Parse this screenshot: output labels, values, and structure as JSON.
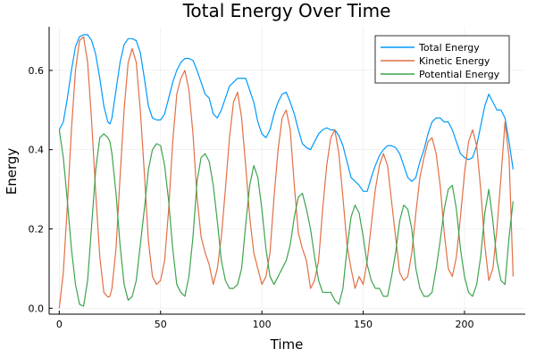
{
  "chart_data": {
    "type": "line",
    "title": "Total Energy Over Time",
    "xlabel": "Time",
    "ylabel": "Energy",
    "xlim": [
      -5,
      230
    ],
    "ylim": [
      -0.015,
      0.71
    ],
    "xticks": [
      0,
      50,
      100,
      150,
      200
    ],
    "xtick_labels": [
      "0",
      "50",
      "100",
      "150",
      "200"
    ],
    "yticks": [
      0.0,
      0.2,
      0.4,
      0.6
    ],
    "ytick_labels": [
      "0.0",
      "0.2",
      "0.4",
      "0.6"
    ],
    "grid": true,
    "legend_position": "top-right",
    "colors": {
      "total": "#009AFA",
      "kinetic": "#E26F46",
      "potential": "#3DA44E"
    },
    "series": [
      {
        "name": "Total Energy",
        "color_key": "total",
        "x": [
          0,
          2,
          4,
          6,
          8,
          10,
          12,
          14,
          16,
          18,
          20,
          22,
          24,
          25,
          26,
          28,
          30,
          32,
          34,
          36,
          38,
          40,
          42,
          44,
          46,
          48,
          50,
          52,
          54,
          56,
          58,
          60,
          62,
          64,
          66,
          68,
          70,
          72,
          74,
          76,
          78,
          80,
          82,
          84,
          86,
          88,
          90,
          92,
          94,
          96,
          98,
          100,
          102,
          104,
          106,
          108,
          110,
          112,
          114,
          116,
          118,
          120,
          122,
          124,
          126,
          128,
          130,
          132,
          134,
          136,
          138,
          140,
          142,
          144,
          146,
          148,
          150,
          152,
          154,
          156,
          158,
          160,
          162,
          164,
          166,
          168,
          170,
          172,
          174,
          176,
          178,
          180,
          182,
          184,
          186,
          188,
          190,
          192,
          194,
          196,
          198,
          200,
          202,
          204,
          206,
          208,
          210,
          212,
          214,
          216,
          218,
          220,
          222,
          224
        ],
        "values": [
          0.45,
          0.47,
          0.53,
          0.6,
          0.66,
          0.685,
          0.69,
          0.69,
          0.675,
          0.64,
          0.58,
          0.51,
          0.47,
          0.465,
          0.48,
          0.55,
          0.62,
          0.665,
          0.68,
          0.68,
          0.675,
          0.645,
          0.58,
          0.51,
          0.48,
          0.475,
          0.475,
          0.49,
          0.53,
          0.57,
          0.6,
          0.62,
          0.63,
          0.63,
          0.625,
          0.6,
          0.57,
          0.54,
          0.53,
          0.49,
          0.48,
          0.5,
          0.53,
          0.56,
          0.57,
          0.58,
          0.58,
          0.58,
          0.55,
          0.52,
          0.47,
          0.44,
          0.43,
          0.45,
          0.49,
          0.52,
          0.54,
          0.545,
          0.52,
          0.49,
          0.45,
          0.415,
          0.405,
          0.4,
          0.42,
          0.44,
          0.45,
          0.455,
          0.45,
          0.45,
          0.435,
          0.41,
          0.37,
          0.33,
          0.32,
          0.31,
          0.295,
          0.295,
          0.33,
          0.36,
          0.385,
          0.4,
          0.41,
          0.41,
          0.405,
          0.39,
          0.36,
          0.33,
          0.32,
          0.33,
          0.37,
          0.4,
          0.44,
          0.47,
          0.48,
          0.48,
          0.47,
          0.47,
          0.45,
          0.42,
          0.39,
          0.38,
          0.375,
          0.38,
          0.41,
          0.46,
          0.51,
          0.54,
          0.52,
          0.5,
          0.5,
          0.48,
          0.42,
          0.35
        ]
      },
      {
        "name": "Kinetic Energy",
        "color_key": "kinetic",
        "x": [
          0,
          2,
          4,
          6,
          8,
          10,
          12,
          14,
          16,
          18,
          20,
          22,
          24,
          25,
          26,
          28,
          30,
          32,
          34,
          36,
          38,
          40,
          42,
          44,
          46,
          48,
          50,
          52,
          54,
          56,
          58,
          60,
          62,
          64,
          66,
          68,
          70,
          72,
          74,
          76,
          78,
          80,
          82,
          84,
          86,
          88,
          90,
          92,
          94,
          96,
          98,
          100,
          102,
          104,
          106,
          108,
          110,
          112,
          114,
          116,
          118,
          120,
          122,
          124,
          126,
          128,
          130,
          132,
          134,
          136,
          138,
          140,
          142,
          144,
          146,
          148,
          150,
          152,
          154,
          156,
          158,
          160,
          162,
          164,
          166,
          168,
          170,
          172,
          174,
          176,
          178,
          180,
          182,
          184,
          186,
          188,
          190,
          192,
          194,
          196,
          198,
          200,
          202,
          204,
          206,
          208,
          210,
          212,
          214,
          216,
          218,
          220,
          222,
          224
        ],
        "values": [
          0.0,
          0.09,
          0.26,
          0.45,
          0.6,
          0.675,
          0.685,
          0.62,
          0.47,
          0.29,
          0.13,
          0.04,
          0.028,
          0.03,
          0.05,
          0.15,
          0.33,
          0.5,
          0.62,
          0.655,
          0.62,
          0.5,
          0.34,
          0.17,
          0.08,
          0.06,
          0.07,
          0.12,
          0.25,
          0.42,
          0.54,
          0.58,
          0.6,
          0.55,
          0.44,
          0.28,
          0.18,
          0.14,
          0.11,
          0.06,
          0.1,
          0.18,
          0.3,
          0.43,
          0.52,
          0.545,
          0.48,
          0.36,
          0.23,
          0.14,
          0.1,
          0.06,
          0.08,
          0.14,
          0.28,
          0.4,
          0.48,
          0.5,
          0.45,
          0.31,
          0.19,
          0.15,
          0.12,
          0.05,
          0.07,
          0.12,
          0.25,
          0.36,
          0.43,
          0.45,
          0.39,
          0.28,
          0.16,
          0.1,
          0.05,
          0.08,
          0.06,
          0.12,
          0.21,
          0.3,
          0.36,
          0.39,
          0.36,
          0.27,
          0.18,
          0.09,
          0.07,
          0.08,
          0.14,
          0.24,
          0.33,
          0.38,
          0.42,
          0.43,
          0.39,
          0.31,
          0.19,
          0.1,
          0.08,
          0.13,
          0.23,
          0.34,
          0.42,
          0.45,
          0.41,
          0.3,
          0.16,
          0.07,
          0.1,
          0.2,
          0.33,
          0.47,
          0.38,
          0.08
        ]
      },
      {
        "name": "Potential Energy",
        "color_key": "potential",
        "x": [
          0,
          2,
          4,
          6,
          8,
          10,
          12,
          14,
          16,
          18,
          20,
          22,
          24,
          25,
          26,
          28,
          30,
          32,
          34,
          36,
          38,
          40,
          42,
          44,
          46,
          48,
          50,
          52,
          54,
          56,
          58,
          60,
          62,
          64,
          66,
          68,
          70,
          72,
          74,
          76,
          78,
          80,
          82,
          84,
          86,
          88,
          90,
          92,
          94,
          96,
          98,
          100,
          102,
          104,
          106,
          108,
          110,
          112,
          114,
          116,
          118,
          120,
          122,
          124,
          126,
          128,
          130,
          132,
          134,
          136,
          138,
          140,
          142,
          144,
          146,
          148,
          150,
          152,
          154,
          156,
          158,
          160,
          162,
          164,
          166,
          168,
          170,
          172,
          174,
          176,
          178,
          180,
          182,
          184,
          186,
          188,
          190,
          192,
          194,
          196,
          198,
          200,
          202,
          204,
          206,
          208,
          210,
          212,
          214,
          216,
          218,
          220,
          222,
          224
        ],
        "values": [
          0.45,
          0.38,
          0.27,
          0.15,
          0.06,
          0.01,
          0.005,
          0.07,
          0.21,
          0.35,
          0.43,
          0.44,
          0.43,
          0.42,
          0.39,
          0.29,
          0.16,
          0.06,
          0.02,
          0.03,
          0.07,
          0.16,
          0.25,
          0.35,
          0.4,
          0.415,
          0.41,
          0.36,
          0.27,
          0.15,
          0.06,
          0.04,
          0.03,
          0.08,
          0.18,
          0.32,
          0.38,
          0.39,
          0.37,
          0.31,
          0.22,
          0.12,
          0.07,
          0.05,
          0.05,
          0.06,
          0.1,
          0.21,
          0.31,
          0.36,
          0.33,
          0.25,
          0.15,
          0.08,
          0.06,
          0.08,
          0.1,
          0.12,
          0.16,
          0.23,
          0.28,
          0.29,
          0.25,
          0.2,
          0.13,
          0.07,
          0.04,
          0.04,
          0.04,
          0.02,
          0.01,
          0.05,
          0.15,
          0.23,
          0.26,
          0.24,
          0.18,
          0.11,
          0.07,
          0.05,
          0.05,
          0.03,
          0.03,
          0.08,
          0.14,
          0.22,
          0.26,
          0.25,
          0.2,
          0.1,
          0.05,
          0.03,
          0.03,
          0.04,
          0.1,
          0.17,
          0.25,
          0.3,
          0.31,
          0.25,
          0.15,
          0.08,
          0.04,
          0.03,
          0.06,
          0.13,
          0.24,
          0.3,
          0.22,
          0.12,
          0.07,
          0.06,
          0.18,
          0.27
        ]
      }
    ]
  }
}
